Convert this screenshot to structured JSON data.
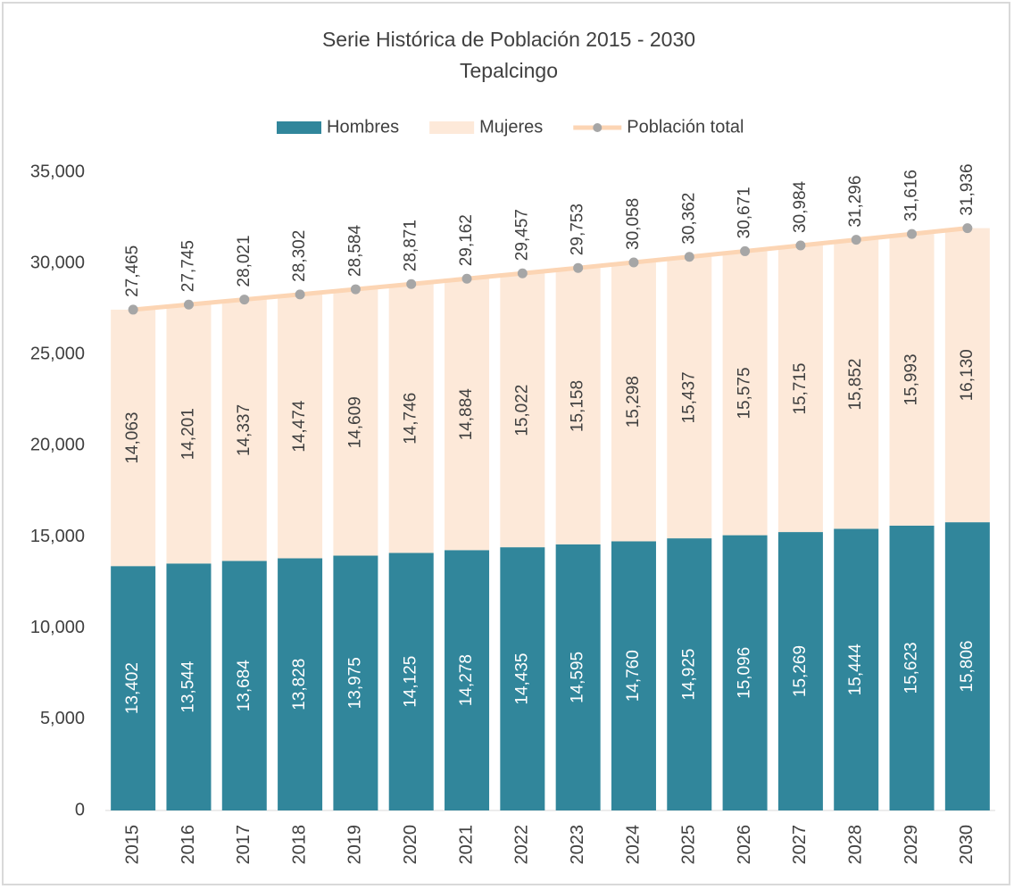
{
  "chart_data": {
    "type": "bar",
    "stacked": true,
    "title": "Serie Histórica de Población 2015 - 2030",
    "subtitle": "Tepalcingo",
    "categories": [
      "2015",
      "2016",
      "2017",
      "2018",
      "2019",
      "2020",
      "2021",
      "2022",
      "2023",
      "2024",
      "2025",
      "2026",
      "2027",
      "2028",
      "2029",
      "2030"
    ],
    "series": [
      {
        "name": "Hombres",
        "type": "bar",
        "color": "#31869b",
        "values": [
          13402,
          13544,
          13684,
          13828,
          13975,
          14125,
          14278,
          14435,
          14595,
          14760,
          14925,
          15096,
          15269,
          15444,
          15623,
          15806
        ],
        "value_labels": [
          "13,402",
          "13,544",
          "13,684",
          "13,828",
          "13,975",
          "14,125",
          "14,278",
          "14,435",
          "14,595",
          "14,760",
          "14,925",
          "15,096",
          "15,269",
          "15,444",
          "15,623",
          "15,806"
        ]
      },
      {
        "name": "Mujeres",
        "type": "bar",
        "color": "#fde9d9",
        "values": [
          14063,
          14201,
          14337,
          14474,
          14609,
          14746,
          14884,
          15022,
          15158,
          15298,
          15437,
          15575,
          15715,
          15852,
          15993,
          16130
        ],
        "value_labels": [
          "14,063",
          "14,201",
          "14,337",
          "14,474",
          "14,609",
          "14,746",
          "14,884",
          "15,022",
          "15,158",
          "15,298",
          "15,437",
          "15,575",
          "15,715",
          "15,852",
          "15,993",
          "16,130"
        ]
      },
      {
        "name": "Población total",
        "type": "line",
        "color": "#fcd5b4",
        "marker_color": "#a6a6a6",
        "values": [
          27465,
          27745,
          28021,
          28302,
          28584,
          28871,
          29162,
          29457,
          29753,
          30058,
          30362,
          30671,
          30984,
          31296,
          31616,
          31936
        ],
        "value_labels": [
          "27,465",
          "27,745",
          "28,021",
          "28,302",
          "28,584",
          "28,871",
          "29,162",
          "29,457",
          "29,753",
          "30,058",
          "30,362",
          "30,671",
          "30,984",
          "31,296",
          "31,616",
          "31,936"
        ]
      }
    ],
    "ylim": [
      0,
      35000
    ],
    "yticks": [
      0,
      {
        "value": 5000,
        "label": "5,000"
      },
      {
        "value": 10000,
        "label": "10,000"
      },
      {
        "value": 15000,
        "label": "15,000"
      },
      {
        "value": 20000,
        "label": "20,000"
      },
      {
        "value": 25000,
        "label": "25,000"
      },
      {
        "value": 30000,
        "label": "30,000"
      },
      {
        "value": 35000,
        "label": "35,000"
      }
    ],
    "grid": false,
    "legend": "top"
  }
}
